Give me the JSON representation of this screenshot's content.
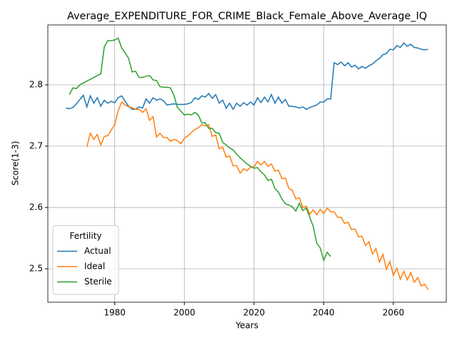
{
  "chart_data": {
    "type": "line",
    "title": "Average_EXPENDITURE_FOR_CRIME_Black_Female_Above_Average_IQ",
    "xlabel": "Years",
    "ylabel": "Score(1-3)",
    "legend_title": "Fertility",
    "legend_loc": "lower left",
    "grid": true,
    "xlim": [
      1960.8,
      2075.2
    ],
    "ylim": [
      2.4455,
      2.8976
    ],
    "xticks": [
      1980,
      2000,
      2020,
      2040,
      2060
    ],
    "yticks": [
      2.5,
      2.6,
      2.7,
      2.8
    ],
    "x": [
      1966,
      1967,
      1968,
      1969,
      1970,
      1971,
      1972,
      1973,
      1974,
      1975,
      1976,
      1977,
      1978,
      1979,
      1980,
      1981,
      1982,
      1983,
      1984,
      1985,
      1986,
      1987,
      1988,
      1989,
      1990,
      1991,
      1992,
      1993,
      1994,
      1995,
      1996,
      1997,
      1998,
      1999,
      2000,
      2001,
      2002,
      2003,
      2004,
      2005,
      2006,
      2007,
      2008,
      2009,
      2010,
      2011,
      2012,
      2013,
      2014,
      2015,
      2016,
      2017,
      2018,
      2019,
      2020,
      2021,
      2022,
      2023,
      2024,
      2025,
      2026,
      2027,
      2028,
      2029,
      2030,
      2031,
      2032,
      2033,
      2034,
      2035,
      2036,
      2037,
      2038,
      2039,
      2040,
      2041,
      2042,
      2043,
      2044,
      2045,
      2046,
      2047,
      2048,
      2049,
      2050,
      2051,
      2052,
      2053,
      2054,
      2055,
      2056,
      2057,
      2058,
      2059,
      2060,
      2061,
      2062,
      2063,
      2064,
      2065,
      2066,
      2067,
      2068,
      2069,
      2070
    ],
    "series": [
      {
        "name": "Actual",
        "color": "#1f77b4",
        "values": [
          2.762,
          2.761,
          2.763,
          2.769,
          2.776,
          2.783,
          2.764,
          2.782,
          2.77,
          2.779,
          2.765,
          2.775,
          2.77,
          2.773,
          2.771,
          2.779,
          2.782,
          2.773,
          2.765,
          2.76,
          2.76,
          2.764,
          2.762,
          2.777,
          2.77,
          2.779,
          2.775,
          2.777,
          2.774,
          2.767,
          2.768,
          2.769,
          2.768,
          2.768,
          2.768,
          2.769,
          2.771,
          2.779,
          2.776,
          2.782,
          2.78,
          2.786,
          2.778,
          2.784,
          2.77,
          2.775,
          2.762,
          2.77,
          2.76,
          2.77,
          2.765,
          2.771,
          2.767,
          2.772,
          2.767,
          2.779,
          2.771,
          2.78,
          2.772,
          2.784,
          2.77,
          2.78,
          2.77,
          2.776,
          2.765,
          2.765,
          2.764,
          2.762,
          2.764,
          2.76,
          2.763,
          2.765,
          2.767,
          2.772,
          2.772,
          2.777,
          2.777,
          2.836,
          2.833,
          2.837,
          2.831,
          2.836,
          2.829,
          2.832,
          2.826,
          2.83,
          2.827,
          2.831,
          2.834,
          2.839,
          2.843,
          2.849,
          2.851,
          2.858,
          2.857,
          2.864,
          2.861,
          2.868,
          2.863,
          2.866,
          2.861,
          2.86,
          2.858,
          2.857,
          2.858
        ]
      },
      {
        "name": "Ideal",
        "color": "#ff7f0e",
        "values": [
          null,
          null,
          null,
          null,
          null,
          null,
          2.699,
          2.721,
          2.711,
          2.719,
          2.702,
          2.716,
          2.717,
          2.726,
          2.735,
          2.758,
          2.772,
          2.767,
          2.764,
          2.763,
          2.76,
          2.76,
          2.755,
          2.761,
          2.742,
          2.748,
          2.715,
          2.721,
          2.714,
          2.714,
          2.708,
          2.711,
          2.709,
          2.704,
          2.713,
          2.717,
          2.722,
          2.727,
          2.73,
          2.735,
          2.733,
          2.735,
          2.716,
          2.718,
          2.696,
          2.698,
          2.682,
          2.684,
          2.668,
          2.668,
          2.656,
          2.663,
          2.66,
          2.666,
          2.666,
          2.675,
          2.669,
          2.675,
          2.667,
          2.671,
          2.659,
          2.661,
          2.647,
          2.648,
          2.631,
          2.628,
          2.614,
          2.616,
          2.6,
          2.602,
          2.589,
          2.596,
          2.588,
          2.597,
          2.59,
          2.599,
          2.593,
          2.593,
          2.584,
          2.584,
          2.574,
          2.576,
          2.564,
          2.565,
          2.552,
          2.553,
          2.538,
          2.544,
          2.524,
          2.533,
          2.511,
          2.524,
          2.499,
          2.512,
          2.489,
          2.501,
          2.483,
          2.496,
          2.482,
          2.494,
          2.478,
          2.486,
          2.472,
          2.475,
          2.466
        ]
      },
      {
        "name": "Sterile",
        "color": "#2ca02c",
        "values": [
          null,
          2.784,
          2.795,
          2.794,
          2.8,
          2.803,
          2.806,
          2.809,
          2.812,
          2.815,
          2.818,
          2.862,
          2.872,
          2.872,
          2.873,
          2.876,
          2.86,
          2.852,
          2.843,
          2.821,
          2.822,
          2.812,
          2.812,
          2.814,
          2.815,
          2.808,
          2.807,
          2.797,
          2.796,
          2.796,
          2.795,
          2.783,
          2.763,
          2.757,
          2.751,
          2.752,
          2.751,
          2.755,
          2.751,
          2.738,
          2.738,
          2.729,
          2.729,
          2.722,
          2.721,
          2.706,
          2.702,
          2.697,
          2.694,
          2.687,
          2.681,
          2.676,
          2.671,
          2.667,
          2.664,
          2.665,
          2.658,
          2.653,
          2.644,
          2.646,
          2.631,
          2.625,
          2.614,
          2.606,
          2.604,
          2.601,
          2.594,
          2.607,
          2.595,
          2.599,
          2.584,
          2.569,
          2.542,
          2.534,
          2.514,
          2.527,
          2.52,
          null,
          null,
          null,
          null,
          null,
          null,
          null,
          null,
          null,
          null,
          null,
          null,
          null,
          null,
          null,
          null,
          null,
          null,
          null,
          null,
          null,
          null,
          null,
          null,
          null,
          null,
          null,
          null
        ]
      }
    ]
  }
}
